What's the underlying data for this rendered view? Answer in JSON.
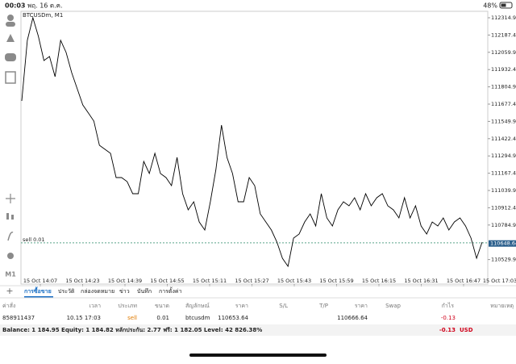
{
  "status_bar": {
    "time": "00:03",
    "date": "พฤ. 16 ต.ค.",
    "battery": "48%"
  },
  "chart": {
    "type": "line",
    "symbol": "BTCUSDm, M1",
    "timeframe": "M1",
    "color": "#000000",
    "values": [
      111701.2,
      112148.1,
      112314.9,
      112177.9,
      111999.1,
      112028.9,
      111880.0,
      112148.1,
      112058.7,
      111909.7,
      111790.6,
      111671.4,
      111611.9,
      111552.3,
      111373.5,
      111343.7,
      111314.0,
      111135.2,
      111135.2,
      111105.4,
      111016.1,
      111016.1,
      111254.4,
      111165.0,
      111314.0,
      111165.0,
      111135.2,
      111075.6,
      111284.2,
      111016.1,
      110896.9,
      110956.5,
      110807.5,
      110748.0,
      110956.5,
      111194.8,
      111522.5,
      111284.2,
      111165.0,
      110956.5,
      110956.5,
      111135.2,
      111075.6,
      110867.1,
      110807.5,
      110748.0,
      110658.6,
      110539.4,
      110479.8,
      110688.4,
      110718.2,
      110807.5,
      110867.1,
      110777.7,
      111016.1,
      110837.3,
      110777.7,
      110896.9,
      110956.5,
      110926.7,
      110986.3,
      110896.9,
      111016.1,
      110926.7,
      110986.3,
      111016.1,
      110926.7,
      110896.9,
      110837.3,
      110986.3,
      110837.3,
      110926.7,
      110777.7,
      110718.2,
      110807.5,
      110777.7,
      110837.3,
      110748.0,
      110807.5,
      110837.3,
      110777.7,
      110688.4,
      110539.4,
      110658.6
    ],
    "ylim": [
      110348.8,
      112362.6
    ],
    "yticks": [
      {
        "value": 112314.9,
        "label": "112314.90"
      },
      {
        "value": 112187.4,
        "label": "112187.40"
      },
      {
        "value": 112059.9,
        "label": "112059.90"
      },
      {
        "value": 111932.4,
        "label": "111932.40"
      },
      {
        "value": 111804.9,
        "label": "111804.90"
      },
      {
        "value": 111677.4,
        "label": "111677.40"
      },
      {
        "value": 111549.9,
        "label": "111549.90"
      },
      {
        "value": 111422.4,
        "label": "111422.40"
      },
      {
        "value": 111294.9,
        "label": "111294.90"
      },
      {
        "value": 111167.4,
        "label": "111167.40"
      },
      {
        "value": 111039.9,
        "label": "111039.90"
      },
      {
        "value": 110912.4,
        "label": "110912.40"
      },
      {
        "value": 110784.9,
        "label": "110784.90"
      },
      {
        "value": 110529.9,
        "label": "110529.90"
      }
    ],
    "xticks": [
      "15 Oct 14:07",
      "15 Oct 14:23",
      "15 Oct 14:39",
      "15 Oct 14:55",
      "15 Oct 15:11",
      "15 Oct 15:27",
      "15 Oct 15:43",
      "15 Oct 15:59",
      "15 Oct 16:15",
      "15 Oct 16:31",
      "15 Oct 16:47",
      "15 Oct 17:03"
    ],
    "order_line": {
      "label": "sell 0.01",
      "value": 110653.64
    },
    "bid": {
      "value": 110648.64,
      "label": "110648.64"
    }
  },
  "tabs": [
    "การซื้อขาย",
    "ประวัติ",
    "กล่องจดหมาย",
    "ข่าว",
    "บันทึก",
    "การตั้งค่า"
  ],
  "table": {
    "headers": [
      "ค่าสั่ง",
      "เวลา",
      "ประเภท",
      "ขนาด",
      "สัญลักษณ์",
      "ราคา",
      "S/L",
      "T/P",
      "ราคา",
      "Swap",
      "กำไร",
      "หมายเหตุ"
    ],
    "row": {
      "ticket": "858911437",
      "time": "10.15 17:03",
      "type": "sell",
      "volume": "0.01",
      "symbol": "btcusdm",
      "open_price": "110653.64",
      "current_price": "110666.64",
      "profit": "-0.13"
    }
  },
  "summary": {
    "text": "Balance: 1 184.95 Equity: 1 184.82 หลักประกัน: 2.77 ฟรี: 1 182.05 Level: 42 826.38%",
    "profit": "-0.13",
    "currency": "USD"
  }
}
